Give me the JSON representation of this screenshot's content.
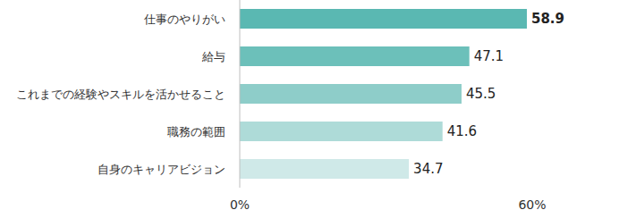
{
  "chart_data": {
    "type": "bar",
    "orientation": "horizontal",
    "categories": [
      "仕事のやりがい",
      "給与",
      "これまでの経験やスキルを活かせること",
      "職務の範囲",
      "自身のキャリアビジョン"
    ],
    "values": [
      58.9,
      47.1,
      45.5,
      41.6,
      34.7
    ],
    "colors": [
      "#5ab8b2",
      "#6cc0ba",
      "#8ecdc9",
      "#aedbd8",
      "#cfe9e8"
    ],
    "xlim": [
      0,
      60
    ],
    "xticks": [
      {
        "value": 0,
        "label": "0%"
      },
      {
        "value": 60,
        "label": "60%"
      }
    ],
    "data_labels": true,
    "grid": false
  }
}
